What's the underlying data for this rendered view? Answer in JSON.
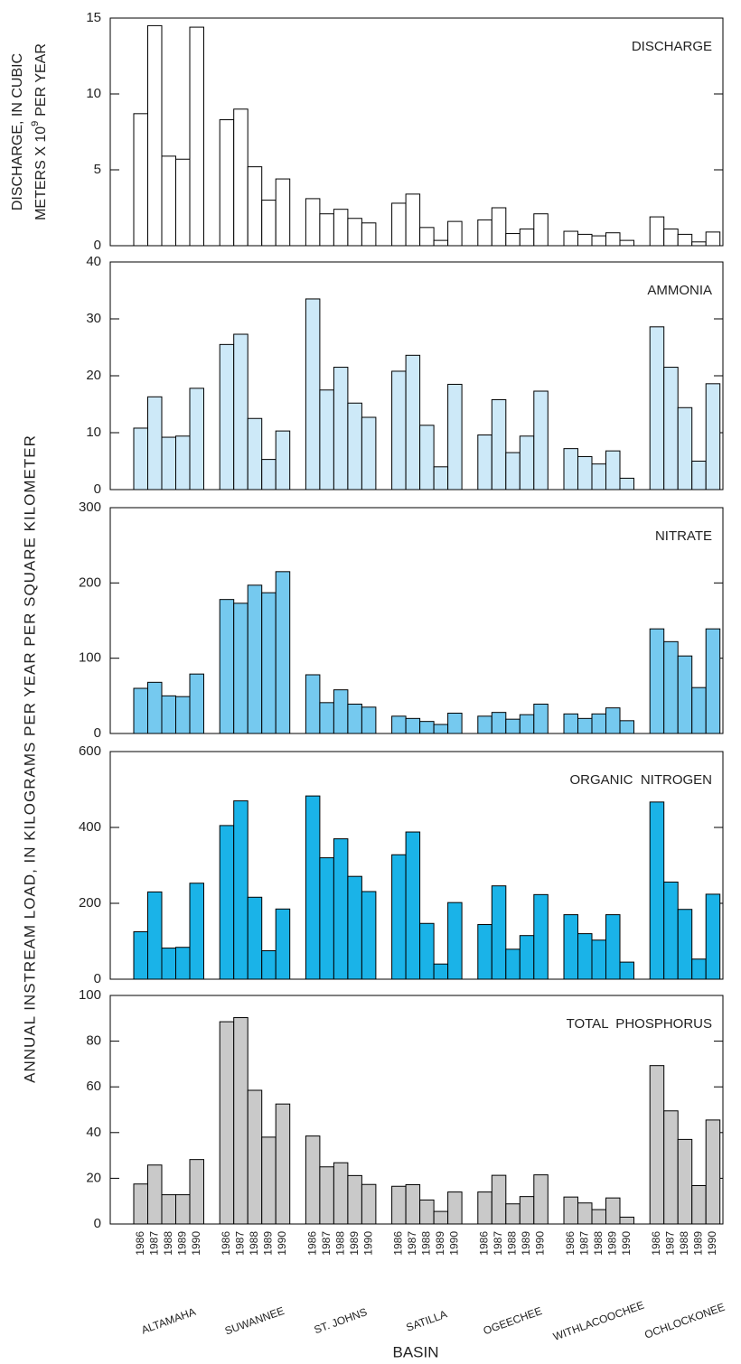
{
  "chart_data": {
    "type": "bar",
    "x_label": "BASIN",
    "y_label": "ANNUAL INSTREAM LOAD, IN KILOGRAMS PER YEAR PER SQUARE KILOMETER",
    "groups": [
      "ALTAMAHA",
      "SUWANNEE",
      "ST. JOHNS",
      "SATILLA",
      "OGEECHEE",
      "WITHLACOOCHEE",
      "OCHLOCKONEE"
    ],
    "categories": [
      "1986",
      "1987",
      "1988",
      "1989",
      "1990"
    ],
    "panels": [
      {
        "title": "DISCHARGE",
        "color": "#ffffff",
        "y_label": {
          "line1": "DISCHARGE, IN CUBIC",
          "line2": "METERS X 10",
          "superscript": "9",
          "line2_end": "PER YEAR"
        },
        "ylim": [
          0,
          15
        ],
        "yticks": [
          0,
          5,
          10,
          15
        ],
        "values": [
          [
            8.7,
            14.5,
            5.9,
            5.7,
            14.4
          ],
          [
            8.3,
            9.0,
            5.2,
            3.0,
            4.4
          ],
          [
            3.1,
            2.1,
            2.4,
            1.8,
            1.5
          ],
          [
            2.8,
            3.4,
            1.2,
            0.35,
            1.6
          ],
          [
            1.7,
            2.5,
            0.8,
            1.1,
            2.1
          ],
          [
            0.95,
            0.75,
            0.65,
            0.85,
            0.35
          ],
          [
            1.9,
            1.1,
            0.75,
            0.25,
            0.9
          ]
        ]
      },
      {
        "title": "AMMONIA",
        "color": "#cde9f8",
        "ylim": [
          0,
          40
        ],
        "yticks": [
          0,
          10,
          20,
          30,
          40
        ],
        "values": [
          [
            10.8,
            16.3,
            9.2,
            9.4,
            17.8
          ],
          [
            25.5,
            27.3,
            12.5,
            5.3,
            10.3
          ],
          [
            33.5,
            17.5,
            21.5,
            15.2,
            12.7
          ],
          [
            20.8,
            23.6,
            11.3,
            4.0,
            18.5
          ],
          [
            9.6,
            15.8,
            6.5,
            9.4,
            17.3
          ],
          [
            7.2,
            5.8,
            4.5,
            6.8,
            2.0
          ],
          [
            28.6,
            21.5,
            14.4,
            5.0,
            18.6
          ]
        ]
      },
      {
        "title": "NITRATE",
        "color": "#75c9ef",
        "ylim": [
          0,
          300
        ],
        "yticks": [
          0,
          100,
          200,
          300
        ],
        "values": [
          [
            60,
            68,
            50,
            49,
            79
          ],
          [
            178,
            173,
            197,
            187,
            215
          ],
          [
            78,
            41,
            58,
            39,
            35
          ],
          [
            23,
            20,
            16,
            12,
            27
          ],
          [
            23,
            28,
            19,
            25,
            39
          ],
          [
            26,
            20,
            26,
            34,
            17
          ],
          [
            139,
            122,
            103,
            61,
            139
          ]
        ]
      },
      {
        "title": "ORGANIC  NITROGEN",
        "color": "#1ab3e8",
        "ylim": [
          0,
          600
        ],
        "yticks": [
          0,
          200,
          400,
          600
        ],
        "values": [
          [
            125,
            230,
            82,
            84,
            253
          ],
          [
            405,
            470,
            216,
            75,
            185
          ],
          [
            483,
            320,
            370,
            271,
            231
          ],
          [
            328,
            388,
            147,
            40,
            202
          ],
          [
            144,
            246,
            79,
            115,
            223
          ],
          [
            170,
            120,
            103,
            170,
            45
          ],
          [
            467,
            256,
            184,
            53,
            224
          ]
        ]
      },
      {
        "title": "TOTAL  PHOSPHORUS",
        "color": "#c9c9c9",
        "ylim": [
          0,
          100
        ],
        "yticks": [
          0,
          20,
          40,
          60,
          80,
          100
        ],
        "values": [
          [
            17.5,
            25.8,
            12.8,
            12.8,
            28.2
          ],
          [
            88.5,
            90.3,
            58.5,
            38,
            52.5
          ],
          [
            38.5,
            25,
            26.8,
            21.2,
            17.3
          ],
          [
            16.5,
            17.2,
            10.5,
            5.5,
            14
          ],
          [
            14,
            21.3,
            8.8,
            12,
            21.5
          ],
          [
            11.8,
            9.2,
            6.3,
            11.4,
            3.0
          ],
          [
            69.3,
            49.5,
            37,
            16.8,
            45.5
          ]
        ]
      }
    ]
  }
}
